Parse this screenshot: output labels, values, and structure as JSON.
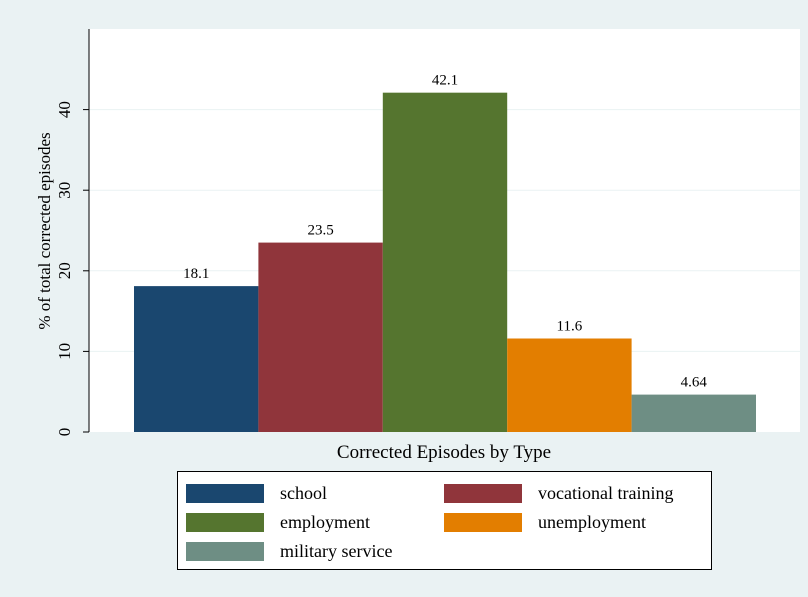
{
  "chart_data": {
    "type": "bar",
    "categories": [
      "school",
      "vocational training",
      "employment",
      "unemployment",
      "military service"
    ],
    "values": [
      18.1,
      23.5,
      42.1,
      11.6,
      4.64
    ],
    "value_labels": [
      "18.1",
      "23.5",
      "42.1",
      "11.6",
      "4.64"
    ],
    "colors": [
      "#1a476f",
      "#90353b",
      "#55752f",
      "#e37e00",
      "#6e8e84"
    ],
    "xlabel": "Corrected Episodes by Type",
    "ylabel": "% of total corrected episodes",
    "ylim": [
      0,
      50
    ],
    "yticks": [
      0,
      10,
      20,
      30,
      40
    ],
    "ytick_labels": [
      "0",
      "10",
      "20",
      "30",
      "40"
    ],
    "grid": true,
    "legend_position": "bottom"
  },
  "legend": {
    "items": [
      {
        "label": "school",
        "color": "#1a476f"
      },
      {
        "label": "vocational training",
        "color": "#90353b"
      },
      {
        "label": "employment",
        "color": "#55752f"
      },
      {
        "label": "unemployment",
        "color": "#e37e00"
      },
      {
        "label": "military service",
        "color": "#6e8e84"
      }
    ]
  }
}
